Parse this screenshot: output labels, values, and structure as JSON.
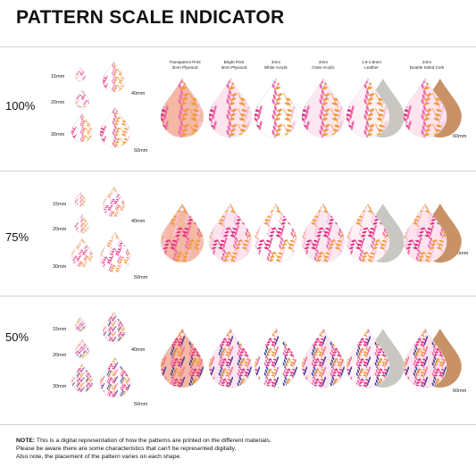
{
  "title": "PATTERN SCALE INDICATOR",
  "colors": {
    "pink_dark": "#e0307f",
    "pink_mid": "#f06aa8",
    "pink_light": "#f9c6dd",
    "orange": "#f39a3a",
    "navy": "#3b3f9a",
    "plywood_bg": "#f4b8a5",
    "leather_grey": "#c9c7c2",
    "cork": "#c99166",
    "divider": "#cfcfcf"
  },
  "materials": [
    {
      "line1": "Transparent Print",
      "line2": "3mm Plywood"
    },
    {
      "line1": "Bright Print",
      "line2": "3mm Plywood"
    },
    {
      "line1": "3mm",
      "line2": "White Acrylic"
    },
    {
      "line1": "3mm",
      "line2": "Clear Acrylic"
    },
    {
      "line1": "1.6-1.8mm",
      "line2": "Leather"
    },
    {
      "line1": "2mm",
      "line2": "Double Sided Cork"
    }
  ],
  "sizes": [
    "15mm",
    "20mm",
    "30mm",
    "40mm",
    "50mm",
    "60mm"
  ],
  "sections": [
    {
      "scale": "100%"
    },
    {
      "scale": "75%"
    },
    {
      "scale": "50%"
    }
  ],
  "note": {
    "label": "NOTE:",
    "line1": " This is a digital representation of how the patterns are printed on the different materials.",
    "line2": "Please be aware there are some characteristics that can't be represented digitally.",
    "line3": "Also note, the placement of the pattern varies on each shape."
  }
}
